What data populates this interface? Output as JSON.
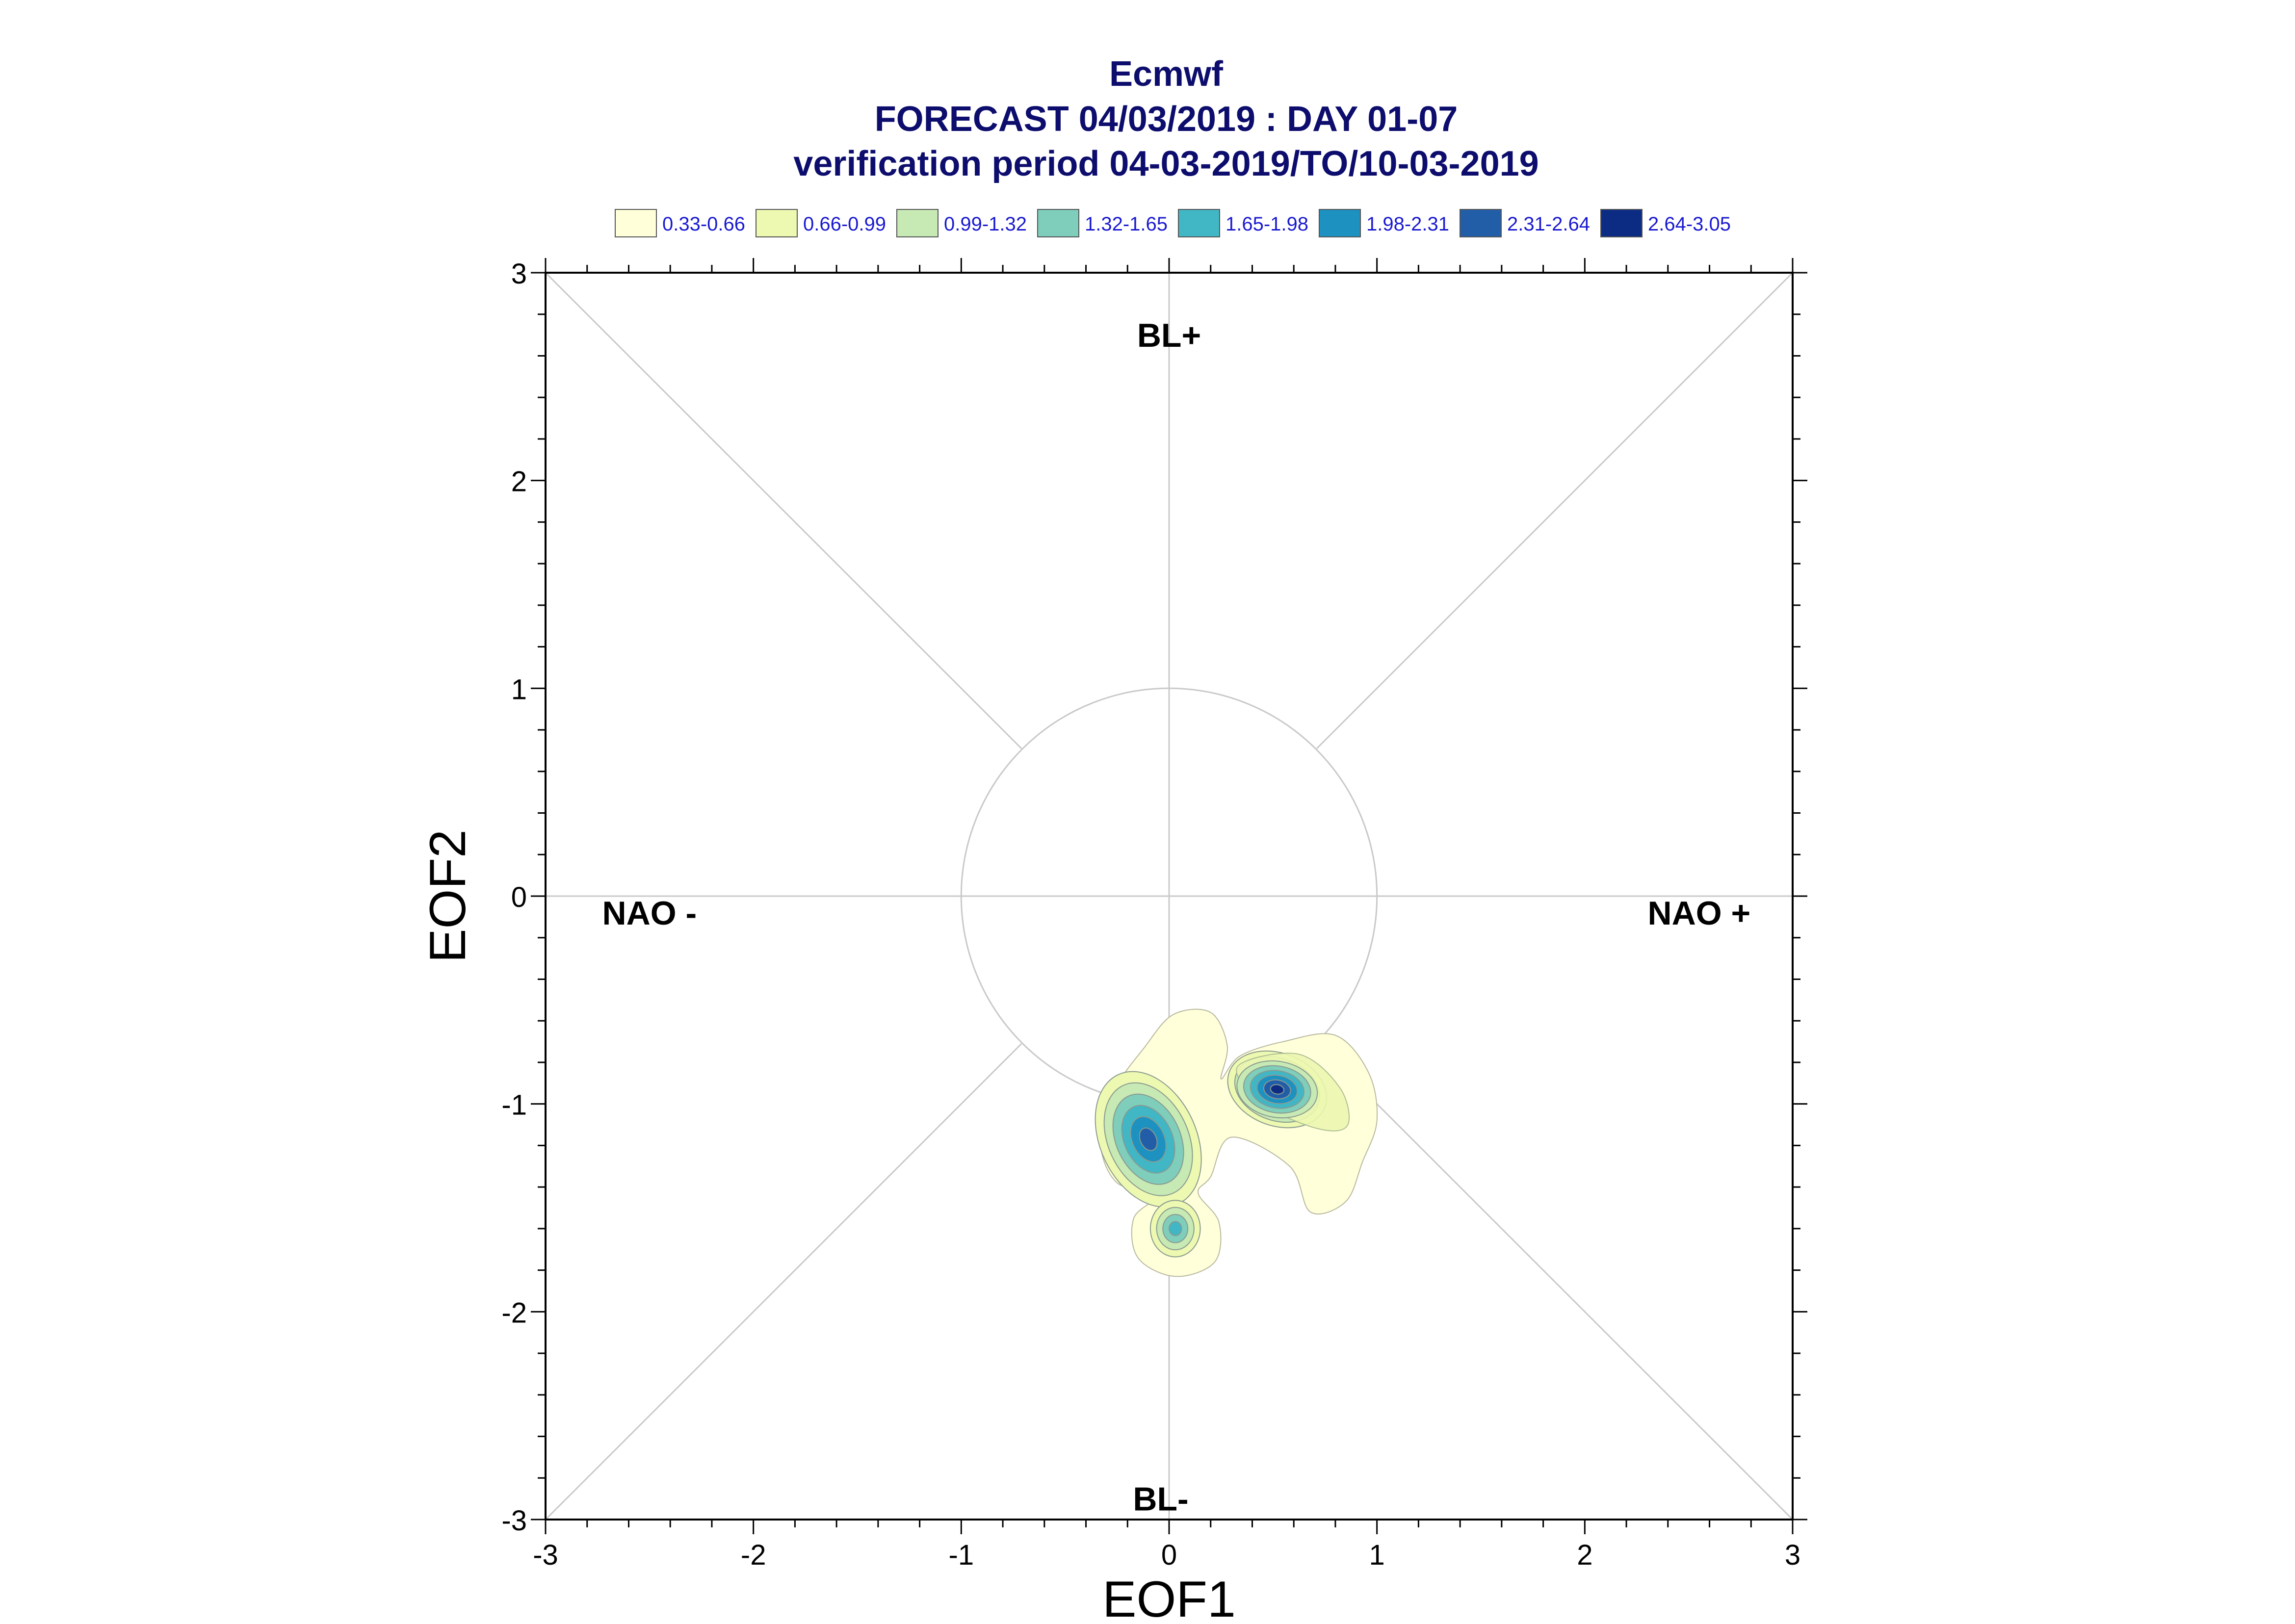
{
  "chart_data": {
    "type": "contour",
    "title_lines": [
      "Ecmwf",
      "FORECAST 04/03/2019 : DAY 01-07",
      "verification period 04-03-2019/TO/10-03-2019"
    ],
    "xlabel": "EOF1",
    "ylabel": "EOF2",
    "xlim": [
      -3,
      3
    ],
    "ylim": [
      -3,
      3
    ],
    "xticks": [
      -3,
      -2,
      -1,
      0,
      1,
      2,
      3
    ],
    "yticks": [
      -3,
      -2,
      -1,
      0,
      1,
      2,
      3
    ],
    "xtick_labels": [
      "-3",
      "-2",
      "-1",
      "0",
      "1",
      "2",
      "3"
    ],
    "ytick_labels": [
      "-3",
      "-2",
      "-1",
      "0",
      "1",
      "2",
      "3"
    ],
    "regions": [
      {
        "label": "BL+",
        "x": 0,
        "y": 2.7
      },
      {
        "label": "NAO -",
        "x": -2.5,
        "y": -0.08
      },
      {
        "label": "NAO +",
        "x": 2.55,
        "y": -0.08
      },
      {
        "label": "BL-",
        "x": -0.04,
        "y": -2.9
      }
    ],
    "reference_circle_radius": 1,
    "legend": [
      {
        "label": "0.33-0.66",
        "color": "#ffffd9"
      },
      {
        "label": "0.66-0.99",
        "color": "#edf8b1"
      },
      {
        "label": "0.99-1.32",
        "color": "#c7e9b4"
      },
      {
        "label": "1.32-1.65",
        "color": "#7fcdbb"
      },
      {
        "label": "1.65-1.98",
        "color": "#41b6c4"
      },
      {
        "label": "1.98-2.31",
        "color": "#1d91c0"
      },
      {
        "label": "2.31-2.64",
        "color": "#225ea8"
      },
      {
        "label": "2.64-3.05",
        "color": "#0c2c84"
      }
    ],
    "density_peaks": [
      {
        "x": -0.1,
        "y": -1.17,
        "peak_level": 7
      },
      {
        "x": 0.52,
        "y": -0.93,
        "peak_level": 8
      },
      {
        "x": 0.03,
        "y": -1.6,
        "peak_level": 5
      }
    ]
  }
}
